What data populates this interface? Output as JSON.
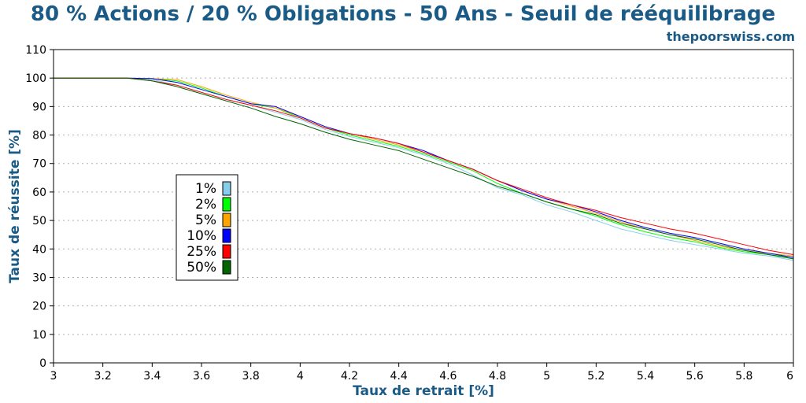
{
  "header": {
    "title": "80 % Actions / 20 % Obligations - 50 Ans - Seuil de rééquilibrage",
    "site": "thepoorswiss.com"
  },
  "chart_data": {
    "type": "line",
    "xlabel": "Taux de retrait [%]",
    "ylabel": "Taux de réussite [%]",
    "xlim": [
      3,
      6
    ],
    "ylim": [
      0,
      110
    ],
    "xticks": [
      "3",
      "3.2",
      "3.4",
      "3.6",
      "3.8",
      "4",
      "4.2",
      "4.4",
      "4.6",
      "4.8",
      "5",
      "5.2",
      "5.4",
      "5.6",
      "5.8",
      "6"
    ],
    "yticks": [
      "0",
      "10",
      "20",
      "30",
      "40",
      "50",
      "60",
      "70",
      "80",
      "90",
      "100",
      "110"
    ],
    "grid": "horizontal-dotted",
    "legend_position": "center-left",
    "x": [
      3.0,
      3.1,
      3.2,
      3.3,
      3.4,
      3.5,
      3.6,
      3.7,
      3.8,
      3.9,
      4.0,
      4.1,
      4.2,
      4.3,
      4.4,
      4.5,
      4.6,
      4.7,
      4.8,
      4.9,
      5.0,
      5.1,
      5.2,
      5.3,
      5.4,
      5.5,
      5.6,
      5.7,
      5.8,
      5.9,
      6.0
    ],
    "series": [
      {
        "name": "1%",
        "color": "#87ceeb",
        "values": [
          100,
          100,
          100,
          100,
          99.5,
          97.5,
          95,
          92.5,
          90.5,
          88,
          85.5,
          82,
          79.5,
          77.5,
          75.5,
          73,
          70,
          66,
          61.5,
          59,
          55.5,
          53,
          50,
          47,
          45,
          43,
          41.5,
          40,
          38.5,
          37.5,
          36
        ]
      },
      {
        "name": "2%",
        "color": "#00ff00",
        "values": [
          100,
          100,
          100,
          100,
          99.8,
          99,
          96.5,
          93.5,
          91,
          89.5,
          86,
          82.5,
          80,
          78,
          76,
          73.5,
          70.5,
          67.5,
          63,
          59.5,
          56.5,
          54,
          51.5,
          48.5,
          46,
          44,
          42.5,
          40.5,
          39,
          38,
          37
        ]
      },
      {
        "name": "5%",
        "color": "#ffa500",
        "values": [
          100,
          100,
          100,
          100,
          99.8,
          99.5,
          97,
          94,
          91.5,
          89.5,
          86.5,
          83,
          80.5,
          78.5,
          76.5,
          74,
          71,
          68,
          64,
          60.5,
          57.5,
          55,
          52.5,
          49.5,
          47,
          45,
          43,
          41,
          39.5,
          38.5,
          37.5
        ]
      },
      {
        "name": "10%",
        "color": "#0000ff",
        "values": [
          100,
          100,
          100,
          100,
          99.8,
          98.5,
          96,
          93.5,
          91,
          90,
          86.5,
          83,
          80.5,
          79,
          77,
          74.5,
          71,
          68,
          64,
          60.5,
          57.5,
          55.5,
          53,
          50,
          47.5,
          45.5,
          44,
          42,
          40,
          38.5,
          37
        ]
      },
      {
        "name": "25%",
        "color": "#ff0000",
        "values": [
          100,
          100,
          100,
          100,
          99,
          97.5,
          95,
          92.5,
          90.5,
          88.5,
          86,
          82.5,
          80.5,
          79,
          77,
          74,
          71,
          68,
          64,
          61,
          58,
          55.5,
          53.5,
          51,
          49,
          47,
          45.5,
          43.5,
          41.5,
          39.5,
          38
        ]
      },
      {
        "name": "50%",
        "color": "#006400",
        "values": [
          100,
          100,
          100,
          100,
          99,
          97,
          94.5,
          92,
          89.5,
          86.5,
          84,
          81,
          78.5,
          76.5,
          74.5,
          71.5,
          68.5,
          65.5,
          62,
          59.5,
          56.5,
          54,
          52,
          49,
          47,
          45,
          43.5,
          41.5,
          39.5,
          38,
          36.5
        ]
      }
    ]
  }
}
